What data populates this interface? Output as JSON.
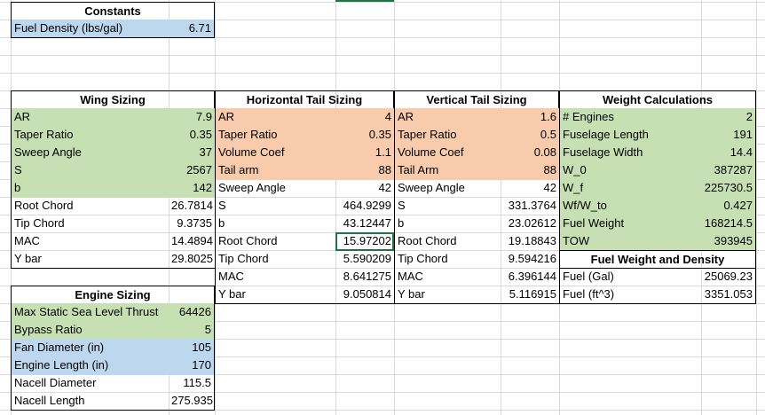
{
  "constants": {
    "title": "Constants",
    "fuel_density_label": "Fuel Density (lbs/gal)",
    "fuel_density_value": "6.71"
  },
  "wing": {
    "title": "Wing Sizing",
    "rows": [
      {
        "label": "AR",
        "value": "7.9"
      },
      {
        "label": "Taper Ratio",
        "value": "0.35"
      },
      {
        "label": "Sweep Angle",
        "value": "37"
      },
      {
        "label": "S",
        "value": "2567"
      },
      {
        "label": "b",
        "value": "142"
      },
      {
        "label": "Root Chord",
        "value": "26.7814"
      },
      {
        "label": "Tip Chord",
        "value": "9.3735"
      },
      {
        "label": "MAC",
        "value": "14.4894"
      },
      {
        "label": "Y bar",
        "value": "29.8025"
      }
    ]
  },
  "htail": {
    "title": "Horizontal Tail Sizing",
    "rows": [
      {
        "label": "AR",
        "value": "4"
      },
      {
        "label": "Taper Ratio",
        "value": "0.35"
      },
      {
        "label": "Volume Coef",
        "value": "1.1"
      },
      {
        "label": "Tail arm",
        "value": "88"
      },
      {
        "label": "Sweep Angle",
        "value": "42"
      },
      {
        "label": "S",
        "value": "464.9299"
      },
      {
        "label": "b",
        "value": "43.12447"
      },
      {
        "label": "Root Chord",
        "value": "15.97202"
      },
      {
        "label": "Tip Chord",
        "value": "5.590209"
      },
      {
        "label": "MAC",
        "value": "8.641275"
      },
      {
        "label": "Y bar",
        "value": "9.050814"
      }
    ]
  },
  "vtail": {
    "title": "Vertical Tail Sizing",
    "rows": [
      {
        "label": "AR",
        "value": "1.6"
      },
      {
        "label": "Taper Ratio",
        "value": "0.5"
      },
      {
        "label": "Volume Coef",
        "value": "0.08"
      },
      {
        "label": "Tail Arm",
        "value": "88"
      },
      {
        "label": "Sweep Angle",
        "value": "42"
      },
      {
        "label": "S",
        "value": "331.3764"
      },
      {
        "label": "b",
        "value": "23.02612"
      },
      {
        "label": "Root Chord",
        "value": "19.18843"
      },
      {
        "label": "Tip Chord",
        "value": "9.594216"
      },
      {
        "label": "MAC",
        "value": "6.396144"
      },
      {
        "label": "Y bar",
        "value": "5.116915"
      }
    ]
  },
  "weight": {
    "title": "Weight Calculations",
    "rows": [
      {
        "label": "# Engines",
        "value": "2"
      },
      {
        "label": "Fuselage Length",
        "value": "191"
      },
      {
        "label": "Fuselage Width",
        "value": "14.4"
      },
      {
        "label": "W_0",
        "value": "387287"
      },
      {
        "label": "W_f",
        "value": "225730.5"
      },
      {
        "label": "Wf/W_to",
        "value": "0.427"
      },
      {
        "label": "Fuel Weight",
        "value": "168214.5"
      },
      {
        "label": "TOW",
        "value": "393945"
      }
    ]
  },
  "fuel": {
    "title": "Fuel Weight and Density",
    "rows": [
      {
        "label": "Fuel (Gal)",
        "value": "25069.23"
      },
      {
        "label": "Fuel (ft^3)",
        "value": "3351.053"
      }
    ]
  },
  "engine": {
    "title": "Engine Sizing",
    "rows": [
      {
        "label": "Max Static Sea Level Thrust",
        "value": "64426"
      },
      {
        "label": "Bypass Ratio",
        "value": "5"
      },
      {
        "label": "Fan Diameter (in)",
        "value": "105"
      },
      {
        "label": "Engine Length (in)",
        "value": "170"
      },
      {
        "label": "Nacell Diameter",
        "value": "115.5"
      },
      {
        "label": "Nacell Length",
        "value": "275.935"
      }
    ]
  },
  "colors": {
    "green_fill": "#c6e0b4",
    "orange_fill": "#f8cbad",
    "blue_fill": "#bdd7ee",
    "selection": "#217346",
    "gridline": "#d9d9d9"
  }
}
